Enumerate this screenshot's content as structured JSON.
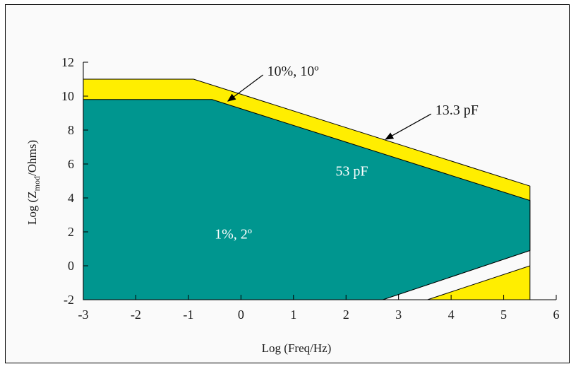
{
  "chart_data": {
    "type": "area",
    "xlabel": "Log (Freq/Hz)",
    "ylabel": {
      "prefix": "Log (Z",
      "sub": "mod",
      "suffix": "/Ohms)"
    },
    "xlim": [
      -3,
      6
    ],
    "ylim": [
      -2,
      12
    ],
    "xticks": [
      -3,
      -2,
      -1,
      0,
      1,
      2,
      3,
      4,
      5,
      6
    ],
    "yticks": [
      -2,
      0,
      2,
      4,
      6,
      8,
      10,
      12
    ],
    "colors": {
      "outer_region": "#ffee00",
      "inner_region": "#00968f"
    },
    "regions": [
      {
        "label": "10%, 10º",
        "color": "#ffee00",
        "outline": [
          [
            -3,
            11
          ],
          [
            -0.9,
            11
          ],
          [
            5.5,
            4.7
          ],
          [
            5.5,
            -2
          ],
          [
            3.55,
            -2
          ],
          [
            5.5,
            0.0
          ],
          [
            5.5,
            0.9
          ],
          [
            2.7,
            -2
          ],
          [
            -3,
            -2
          ]
        ]
      },
      {
        "label": "1%, 2º",
        "color": "#00968f",
        "outline": [
          [
            -3,
            9.8
          ],
          [
            -0.55,
            9.8
          ],
          [
            5.5,
            3.85
          ],
          [
            5.5,
            0.9
          ],
          [
            2.7,
            -2
          ],
          [
            -3,
            -2
          ]
        ]
      }
    ],
    "annotations": [
      {
        "text": "10%, 10º",
        "position": [
          0.5,
          11.5
        ],
        "arrow_to": [
          -0.25,
          9.7
        ]
      },
      {
        "text": "13.3 pF",
        "position": [
          3.7,
          9.2
        ],
        "arrow_to": [
          2.75,
          7.45
        ]
      },
      {
        "text": "53 pF",
        "position": [
          1.8,
          5.6
        ]
      },
      {
        "text": "1%, 2º",
        "position": [
          -0.5,
          1.9
        ]
      }
    ]
  }
}
